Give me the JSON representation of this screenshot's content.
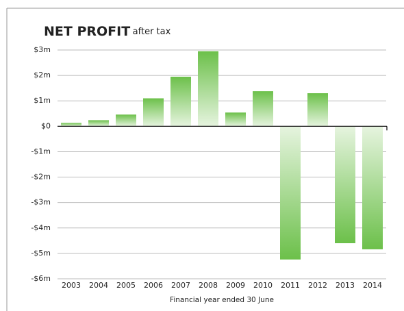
{
  "chart_data": {
    "type": "bar",
    "title": "NET PROFIT",
    "subtitle": "after tax",
    "x_label": "Financial year ended 30 June",
    "categories": [
      "2003",
      "2004",
      "2005",
      "2006",
      "2007",
      "2008",
      "2009",
      "2010",
      "2011",
      "2012",
      "2013",
      "2014"
    ],
    "values": [
      0.13,
      0.24,
      0.46,
      1.1,
      1.95,
      2.95,
      0.54,
      1.38,
      -5.24,
      1.3,
      -4.6,
      -4.84
    ],
    "color": "#6cc04a",
    "ylim": [
      -6,
      3
    ],
    "yticks": [
      {
        "value": 3,
        "label": "$3m"
      },
      {
        "value": 2,
        "label": "$2m"
      },
      {
        "value": 1,
        "label": "$1m"
      },
      {
        "value": 0,
        "label": "$0"
      },
      {
        "value": -1,
        "label": "-$1m"
      },
      {
        "value": -2,
        "label": "-$2m"
      },
      {
        "value": -3,
        "label": "-$3m"
      },
      {
        "value": -4,
        "label": "-$4m"
      },
      {
        "value": -5,
        "label": "-$5m"
      },
      {
        "value": -6,
        "label": "-$6m"
      }
    ],
    "grid": true
  }
}
